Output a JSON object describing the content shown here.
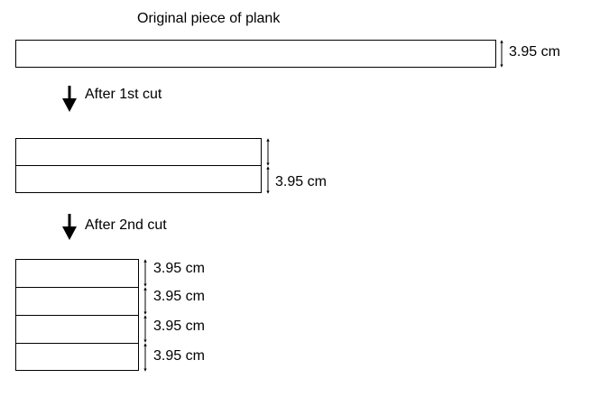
{
  "diagram": {
    "title": "Original piece of plank",
    "dimension": "3.95 cm",
    "step1_label": "After 1st cut",
    "step2_label": "After 2nd cut",
    "stage2_dimension": "3.95 cm",
    "stage3_dimensions": [
      "3.95 cm",
      "3.95 cm",
      "3.95 cm",
      "3.95 cm"
    ]
  }
}
